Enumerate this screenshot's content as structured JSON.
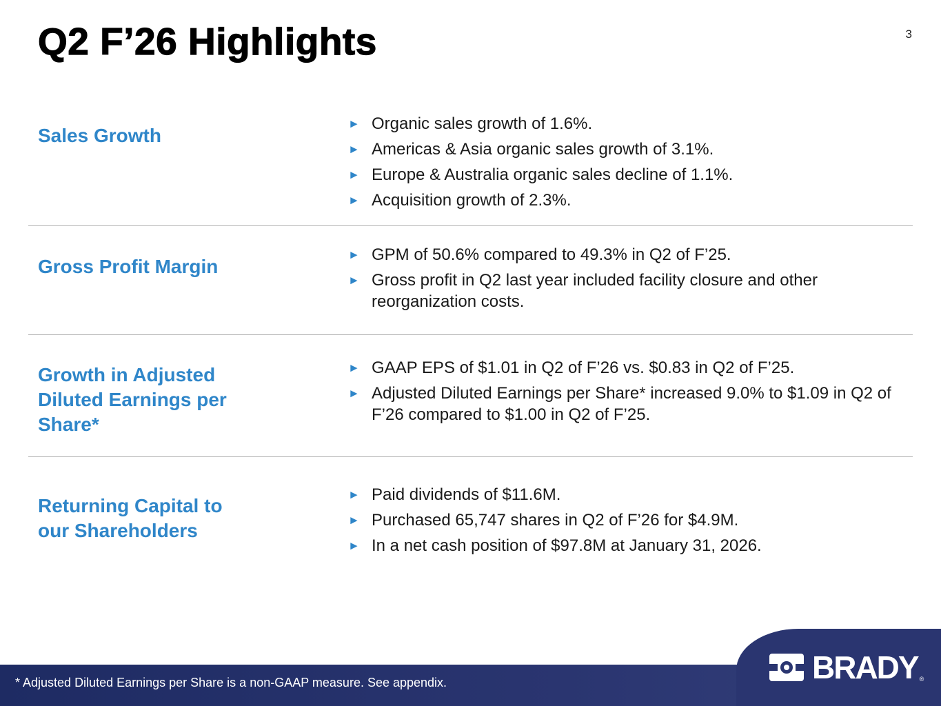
{
  "title": "Q2 F’26 Highlights",
  "page_number": "3",
  "bullet_glyph": "►",
  "colors": {
    "accent": "#2f86c9",
    "footer": "#2a3570"
  },
  "sections": [
    {
      "label": "Sales Growth",
      "bullets": [
        "Organic sales growth of 1.6%.",
        "Americas & Asia organic sales growth of 3.1%.",
        "Europe & Australia organic sales decline of 1.1%.",
        "Acquisition growth of 2.3%."
      ]
    },
    {
      "label": "Gross Profit Margin",
      "bullets": [
        "GPM of 50.6% compared to 49.3% in Q2 of F’25.",
        "Gross profit in Q2 last year included facility closure and other reorganization costs."
      ]
    },
    {
      "label": "Growth in Adjusted Diluted Earnings per Share*",
      "bullets": [
        "GAAP EPS of $1.01 in Q2 of F’26 vs. $0.83 in Q2 of F’25.",
        "Adjusted Diluted Earnings per Share* increased 9.0% to $1.09 in Q2 of F’26 compared to $1.00 in Q2 of F’25."
      ]
    },
    {
      "label": "Returning Capital to our Shareholders",
      "bullets": [
        "Paid dividends of $11.6M.",
        "Purchased 65,747 shares in Q2 of F’26 for $4.9M.",
        "In a net cash position of $97.8M at January 31, 2026."
      ]
    }
  ],
  "footnote": "* Adjusted Diluted Earnings per Share is a non-GAAP measure.  See appendix.",
  "logo": {
    "text": "BRADY",
    "reg": "®",
    "mark_icon": "brady-mark-icon"
  }
}
